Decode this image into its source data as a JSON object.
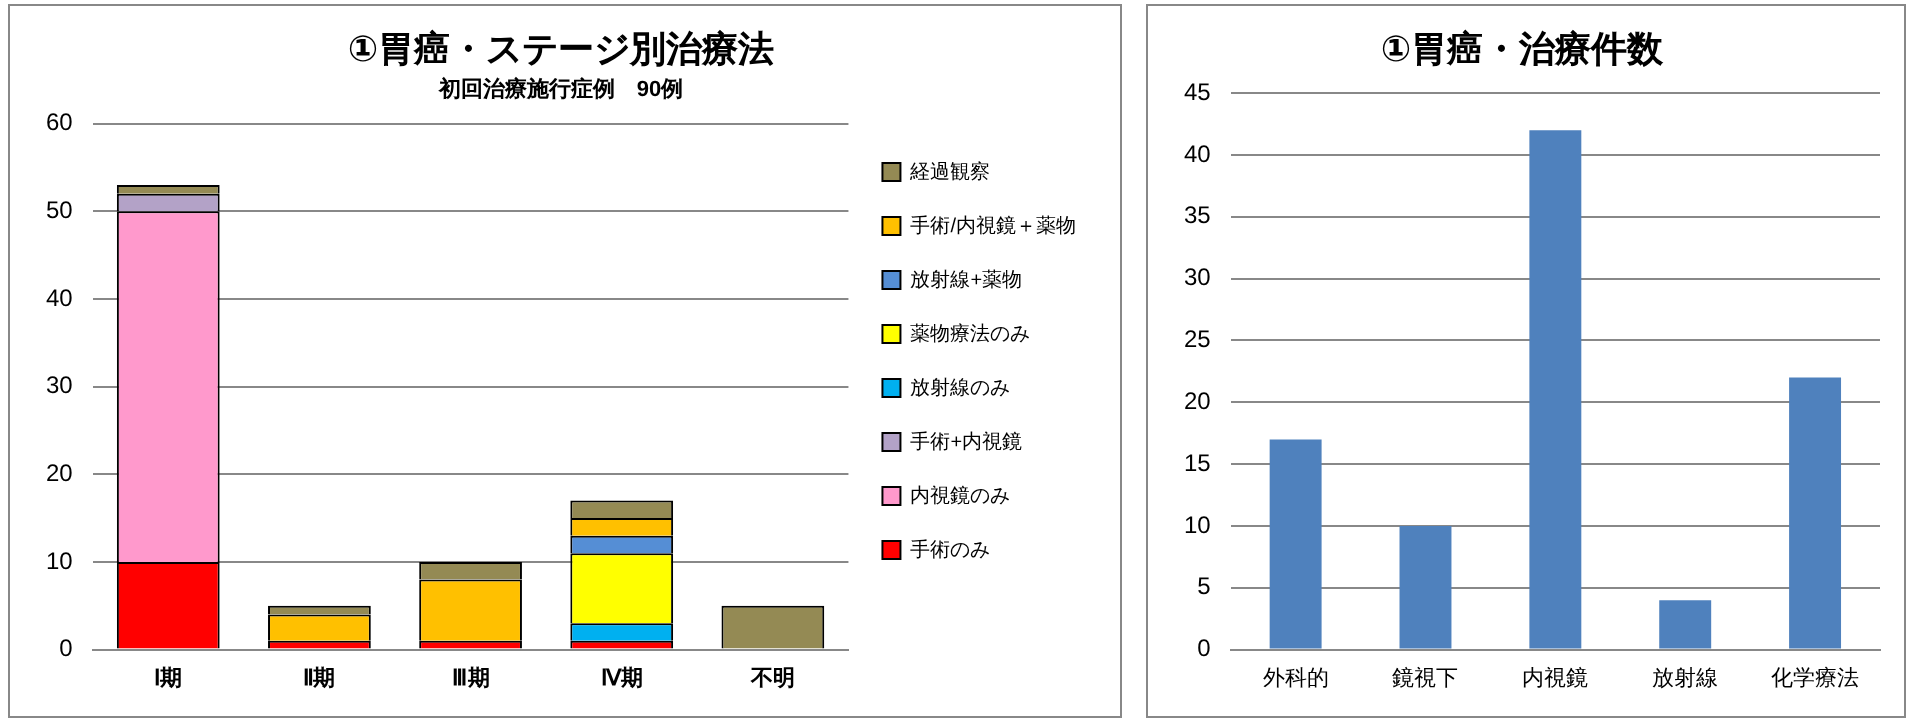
{
  "chart_data": [
    {
      "type": "bar",
      "title": "①胃癌・ステージ別治療法",
      "subtitle": "初回治療施行症例　90例",
      "categories": [
        "Ⅰ期",
        "Ⅱ期",
        "Ⅲ期",
        "Ⅳ期",
        "不明"
      ],
      "stacked": true,
      "ylim": [
        0,
        60
      ],
      "yticks": [
        0,
        10,
        20,
        30,
        40,
        50,
        60
      ],
      "grid": "y",
      "legend": "right",
      "series": [
        {
          "name": "手術のみ",
          "color": "#ff0000",
          "values": [
            10,
            1,
            1,
            1,
            0
          ]
        },
        {
          "name": "内視鏡のみ",
          "color": "#ff99cc",
          "values": [
            40,
            0,
            0,
            0,
            0
          ]
        },
        {
          "name": "手術+内視鏡",
          "color": "#b3a2c7",
          "values": [
            2,
            0,
            0,
            0,
            0
          ]
        },
        {
          "name": "放射線のみ",
          "color": "#00b0f0",
          "values": [
            0,
            0,
            0,
            2,
            0
          ]
        },
        {
          "name": "薬物療法のみ",
          "color": "#ffff00",
          "values": [
            0,
            0,
            0,
            8,
            0
          ]
        },
        {
          "name": "放射線+薬物",
          "color": "#558ed5",
          "values": [
            0,
            0,
            0,
            2,
            0
          ]
        },
        {
          "name": "手術/内視鏡＋薬物",
          "color": "#ffc000",
          "values": [
            0,
            3,
            7,
            2,
            0
          ]
        },
        {
          "name": "経過観察",
          "color": "#948a54",
          "values": [
            1,
            1,
            2,
            2,
            5
          ]
        }
      ]
    },
    {
      "type": "bar",
      "title": "①胃癌・治療件数",
      "categories": [
        "外科的",
        "鏡視下",
        "内視鏡",
        "放射線",
        "化学療法"
      ],
      "ylim": [
        0,
        45
      ],
      "yticks": [
        0,
        5,
        10,
        15,
        20,
        25,
        30,
        35,
        40,
        45
      ],
      "grid": "y",
      "legend": false,
      "series": [
        {
          "color": "#4f81bd",
          "values": [
            17,
            10,
            42,
            4,
            22
          ]
        }
      ]
    }
  ]
}
